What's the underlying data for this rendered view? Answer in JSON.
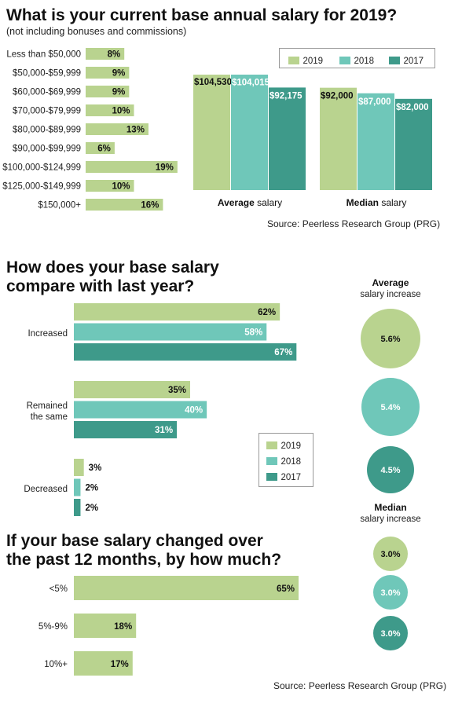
{
  "colors": {
    "c2019": "#b9d38f",
    "c2018": "#6fc7b9",
    "c2017": "#3e9a8a"
  },
  "section1": {
    "title": "What is your current base annual salary for 2019?",
    "subtitle": "(not including bonuses and commissions)",
    "source": "Source: Peerless Research Group (PRG)"
  },
  "section2": {
    "title_line1": "How does your base salary",
    "title_line2": "compare with last year?"
  },
  "section3": {
    "title_line1": "If your base salary changed over",
    "title_line2": "the past 12 months, by how much?",
    "source": "Source: Peerless Research Group (PRG)"
  },
  "legend": [
    "2019",
    "2018",
    "2017"
  ],
  "chart_data": [
    {
      "type": "bar",
      "orientation": "horizontal",
      "categories": [
        "Less than $50,000",
        "$50,000-$59,999",
        "$60,000-$69,999",
        "$70,000-$79,999",
        "$80,000-$89,999",
        "$90,000-$99,999",
        "$100,000-$124,999",
        "$125,000-$149,999",
        "$150,000+"
      ],
      "values": [
        8,
        9,
        9,
        10,
        13,
        6,
        19,
        10,
        16
      ],
      "labels": [
        "8%",
        "9%",
        "9%",
        "10%",
        "13%",
        "6%",
        "19%",
        "10%",
        "16%"
      ],
      "xlim": [
        0,
        20
      ]
    },
    {
      "type": "bar",
      "categories": [
        "Average",
        "Median"
      ],
      "category_suffix": "salary",
      "series": [
        {
          "name": "2019",
          "values": [
            104530,
            92000
          ],
          "labels": [
            "$104,530",
            "$92,000"
          ]
        },
        {
          "name": "2018",
          "values": [
            104015,
            87000
          ],
          "labels": [
            "$104,015",
            "$87,000"
          ]
        },
        {
          "name": "2017",
          "values": [
            92175,
            82000
          ],
          "labels": [
            "$92,175",
            "$82,000"
          ]
        }
      ],
      "ylim": [
        0,
        120000
      ],
      "legend_position": "top"
    },
    {
      "type": "bar",
      "orientation": "horizontal",
      "categories": [
        "Increased",
        "Remained the same",
        "Decreased"
      ],
      "category_lines": [
        [
          "Increased"
        ],
        [
          "Remained",
          "the same"
        ],
        [
          "Decreased"
        ]
      ],
      "series": [
        {
          "name": "2019",
          "values": [
            62,
            35,
            3
          ],
          "labels": [
            "62%",
            "35%",
            "3%"
          ]
        },
        {
          "name": "2018",
          "values": [
            58,
            40,
            2
          ],
          "labels": [
            "58%",
            "40%",
            "2%"
          ]
        },
        {
          "name": "2017",
          "values": [
            67,
            31,
            2
          ],
          "labels": [
            "67%",
            "31%",
            "2%"
          ]
        }
      ],
      "xlim": [
        0,
        70
      ],
      "legend_position": "bottom-right"
    },
    {
      "type": "bubble",
      "groups": [
        {
          "title": "Average",
          "subtitle": "salary increase",
          "series": [
            {
              "name": "2019",
              "value": 5.6,
              "label": "5.6%"
            },
            {
              "name": "2018",
              "value": 5.4,
              "label": "5.4%"
            },
            {
              "name": "2017",
              "value": 4.5,
              "label": "4.5%"
            }
          ]
        },
        {
          "title": "Median",
          "subtitle": "salary increase",
          "series": [
            {
              "name": "2019",
              "value": 3.0,
              "label": "3.0%"
            },
            {
              "name": "2018",
              "value": 3.0,
              "label": "3.0%"
            },
            {
              "name": "2017",
              "value": 3.0,
              "label": "3.0%"
            }
          ]
        }
      ]
    },
    {
      "type": "bar",
      "orientation": "horizontal",
      "categories": [
        "<5%",
        "5%-9%",
        "10%+"
      ],
      "values": [
        65,
        18,
        17
      ],
      "labels": [
        "65%",
        "18%",
        "17%"
      ],
      "xlim": [
        0,
        70
      ]
    }
  ]
}
